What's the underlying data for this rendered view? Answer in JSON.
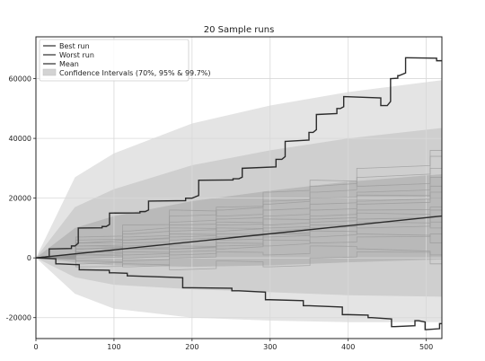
{
  "chart_data": {
    "type": "line",
    "title": "20 Sample runs",
    "xlabel": "",
    "ylabel": "",
    "xlim": [
      0,
      520
    ],
    "ylim": [
      -27000,
      74000
    ],
    "x_ticks": [
      0,
      100,
      200,
      300,
      400,
      500
    ],
    "y_ticks": [
      -20000,
      0,
      20000,
      40000,
      60000
    ],
    "x_tick_labels": [
      "0",
      "100",
      "200",
      "300",
      "400",
      "500"
    ],
    "y_tick_labels": [
      "-20000",
      "0",
      "20000",
      "40000",
      "60000"
    ],
    "grid": true,
    "legend_position": "top-left",
    "legend": [
      "Best run",
      "Worst run",
      "Mean",
      "Confidence Intervals (70%, 95% & 99.7%)"
    ],
    "confidence_bands": [
      {
        "level": "99.7%",
        "upper": [
          [
            0,
            0
          ],
          [
            50,
            27000
          ],
          [
            100,
            35000
          ],
          [
            200,
            45000
          ],
          [
            300,
            51000
          ],
          [
            400,
            55500
          ],
          [
            520,
            59500
          ]
        ],
        "lower": [
          [
            0,
            0
          ],
          [
            50,
            -12000
          ],
          [
            100,
            -17000
          ],
          [
            200,
            -20000
          ],
          [
            300,
            -21000
          ],
          [
            400,
            -21500
          ],
          [
            520,
            -21500
          ]
        ]
      },
      {
        "level": "95%",
        "upper": [
          [
            0,
            0
          ],
          [
            50,
            17000
          ],
          [
            100,
            23000
          ],
          [
            200,
            31000
          ],
          [
            300,
            36000
          ],
          [
            400,
            40000
          ],
          [
            520,
            43500
          ]
        ],
        "lower": [
          [
            0,
            0
          ],
          [
            50,
            -6500
          ],
          [
            100,
            -9000
          ],
          [
            200,
            -10500
          ],
          [
            300,
            -11500
          ],
          [
            400,
            -12500
          ],
          [
            520,
            -13000
          ]
        ]
      },
      {
        "level": "70%",
        "upper": [
          [
            0,
            0
          ],
          [
            50,
            10000
          ],
          [
            100,
            14000
          ],
          [
            200,
            19000
          ],
          [
            300,
            22500
          ],
          [
            400,
            25500
          ],
          [
            520,
            28000
          ]
        ],
        "lower": [
          [
            0,
            0
          ],
          [
            50,
            -1500
          ],
          [
            100,
            -2500
          ],
          [
            200,
            -3000
          ],
          [
            300,
            -2500
          ],
          [
            400,
            -1500
          ],
          [
            520,
            -500
          ]
        ]
      }
    ],
    "series": [
      {
        "role": "best",
        "points": [
          [
            0,
            0
          ],
          [
            20,
            3000
          ],
          [
            50,
            4000
          ],
          [
            55,
            10000
          ],
          [
            90,
            10500
          ],
          [
            95,
            15000
          ],
          [
            140,
            15500
          ],
          [
            145,
            19000
          ],
          [
            200,
            20000
          ],
          [
            210,
            26000
          ],
          [
            260,
            26500
          ],
          [
            265,
            30000
          ],
          [
            315,
            33000
          ],
          [
            320,
            39000
          ],
          [
            355,
            42000
          ],
          [
            360,
            48000
          ],
          [
            390,
            50000
          ],
          [
            395,
            54000
          ],
          [
            450,
            51000
          ],
          [
            455,
            60000
          ],
          [
            465,
            61000
          ],
          [
            475,
            67000
          ],
          [
            520,
            66000
          ]
        ]
      },
      {
        "role": "worst",
        "points": [
          [
            0,
            0
          ],
          [
            30,
            -2000
          ],
          [
            60,
            -4000
          ],
          [
            100,
            -5000
          ],
          [
            120,
            -6000
          ],
          [
            200,
            -10000
          ],
          [
            260,
            -11000
          ],
          [
            300,
            -14000
          ],
          [
            350,
            -16000
          ],
          [
            400,
            -19000
          ],
          [
            430,
            -20000
          ],
          [
            460,
            -23000
          ],
          [
            490,
            -21000
          ],
          [
            500,
            -24000
          ],
          [
            520,
            -22000
          ]
        ]
      },
      {
        "role": "mean",
        "points": [
          [
            0,
            0
          ],
          [
            520,
            14000
          ]
        ]
      },
      {
        "role": "sample",
        "points": [
          [
            0,
            0
          ],
          [
            60,
            4000
          ],
          [
            120,
            6000
          ],
          [
            180,
            9000
          ],
          [
            240,
            12000
          ],
          [
            300,
            11000
          ],
          [
            360,
            16000
          ],
          [
            420,
            19000
          ],
          [
            520,
            24000
          ]
        ]
      },
      {
        "role": "sample",
        "points": [
          [
            0,
            0
          ],
          [
            60,
            -2000
          ],
          [
            120,
            1000
          ],
          [
            180,
            4000
          ],
          [
            240,
            3000
          ],
          [
            300,
            8000
          ],
          [
            360,
            7000
          ],
          [
            420,
            12000
          ],
          [
            520,
            10000
          ]
        ]
      },
      {
        "role": "sample",
        "points": [
          [
            0,
            0
          ],
          [
            60,
            6000
          ],
          [
            120,
            8000
          ],
          [
            180,
            14000
          ],
          [
            240,
            17000
          ],
          [
            300,
            19000
          ],
          [
            360,
            22000
          ],
          [
            420,
            27000
          ],
          [
            520,
            34000
          ]
        ]
      },
      {
        "role": "sample",
        "points": [
          [
            0,
            0
          ],
          [
            60,
            1000
          ],
          [
            120,
            -1000
          ],
          [
            180,
            2000
          ],
          [
            240,
            5000
          ],
          [
            300,
            4000
          ],
          [
            360,
            9000
          ],
          [
            420,
            8000
          ],
          [
            520,
            5000
          ]
        ]
      },
      {
        "role": "sample",
        "points": [
          [
            0,
            0
          ],
          [
            60,
            3000
          ],
          [
            120,
            7000
          ],
          [
            180,
            10000
          ],
          [
            240,
            9000
          ],
          [
            300,
            14000
          ],
          [
            360,
            18000
          ],
          [
            420,
            21000
          ],
          [
            520,
            20000
          ]
        ]
      },
      {
        "role": "sample",
        "points": [
          [
            0,
            0
          ],
          [
            60,
            -1000
          ],
          [
            120,
            -3000
          ],
          [
            180,
            0
          ],
          [
            240,
            2000
          ],
          [
            300,
            1000
          ],
          [
            360,
            4000
          ],
          [
            420,
            3000
          ],
          [
            520,
            -2000
          ]
        ]
      },
      {
        "role": "sample",
        "points": [
          [
            0,
            0
          ],
          [
            60,
            5000
          ],
          [
            120,
            11000
          ],
          [
            180,
            12000
          ],
          [
            240,
            16000
          ],
          [
            300,
            22000
          ],
          [
            360,
            26000
          ],
          [
            420,
            24000
          ],
          [
            520,
            30000
          ]
        ]
      },
      {
        "role": "sample",
        "points": [
          [
            0,
            0
          ],
          [
            60,
            2000
          ],
          [
            120,
            4000
          ],
          [
            180,
            8000
          ],
          [
            240,
            7000
          ],
          [
            300,
            10000
          ],
          [
            360,
            13000
          ],
          [
            420,
            16000
          ],
          [
            520,
            17000
          ]
        ]
      },
      {
        "role": "sample",
        "points": [
          [
            0,
            0
          ],
          [
            60,
            4000
          ],
          [
            120,
            3000
          ],
          [
            180,
            6000
          ],
          [
            240,
            11000
          ],
          [
            300,
            13000
          ],
          [
            360,
            12000
          ],
          [
            420,
            15000
          ],
          [
            520,
            12000
          ]
        ]
      },
      {
        "role": "sample",
        "points": [
          [
            0,
            0
          ],
          [
            60,
            0
          ],
          [
            120,
            2000
          ],
          [
            180,
            1000
          ],
          [
            240,
            4000
          ],
          [
            300,
            6000
          ],
          [
            360,
            5000
          ],
          [
            420,
            7000
          ],
          [
            520,
            8000
          ]
        ]
      },
      {
        "role": "sample",
        "points": [
          [
            0,
            0
          ],
          [
            60,
            7000
          ],
          [
            120,
            9000
          ],
          [
            180,
            16000
          ],
          [
            240,
            14000
          ],
          [
            300,
            18000
          ],
          [
            360,
            24000
          ],
          [
            420,
            30000
          ],
          [
            520,
            36000
          ]
        ]
      },
      {
        "role": "sample",
        "points": [
          [
            0,
            0
          ],
          [
            60,
            -3000
          ],
          [
            120,
            -2000
          ],
          [
            180,
            -4000
          ],
          [
            240,
            -1000
          ],
          [
            300,
            -3000
          ],
          [
            360,
            0
          ],
          [
            420,
            2000
          ],
          [
            520,
            1000
          ]
        ]
      },
      {
        "role": "sample",
        "points": [
          [
            0,
            0
          ],
          [
            60,
            3000
          ],
          [
            120,
            5000
          ],
          [
            180,
            7000
          ],
          [
            240,
            10000
          ],
          [
            300,
            9000
          ],
          [
            360,
            14000
          ],
          [
            420,
            18000
          ],
          [
            520,
            22000
          ]
        ]
      },
      {
        "role": "sample",
        "points": [
          [
            0,
            0
          ],
          [
            60,
            1000
          ],
          [
            120,
            3000
          ],
          [
            180,
            3000
          ],
          [
            240,
            6000
          ],
          [
            300,
            8000
          ],
          [
            360,
            11000
          ],
          [
            420,
            10000
          ],
          [
            520,
            14000
          ]
        ]
      },
      {
        "role": "sample",
        "points": [
          [
            0,
            0
          ],
          [
            60,
            5000
          ],
          [
            120,
            6000
          ],
          [
            180,
            11000
          ],
          [
            240,
            13000
          ],
          [
            300,
            16000
          ],
          [
            360,
            20000
          ],
          [
            420,
            22000
          ],
          [
            520,
            27000
          ]
        ]
      },
      {
        "role": "sample",
        "points": [
          [
            0,
            0
          ],
          [
            60,
            2000
          ],
          [
            120,
            0
          ],
          [
            180,
            3000
          ],
          [
            240,
            8000
          ],
          [
            300,
            7000
          ],
          [
            360,
            10000
          ],
          [
            420,
            13000
          ],
          [
            520,
            16000
          ]
        ]
      }
    ]
  },
  "colors": {
    "best": "#2b2b2b",
    "worst": "#2b2b2b",
    "mean": "#2b2b2b",
    "sample": "#9a9a9a",
    "band_997": "#e4e4e4",
    "band_95": "#cfcfcf",
    "band_70": "#b9b9b9",
    "grid": "#d8d8d8",
    "axis": "#222222"
  }
}
